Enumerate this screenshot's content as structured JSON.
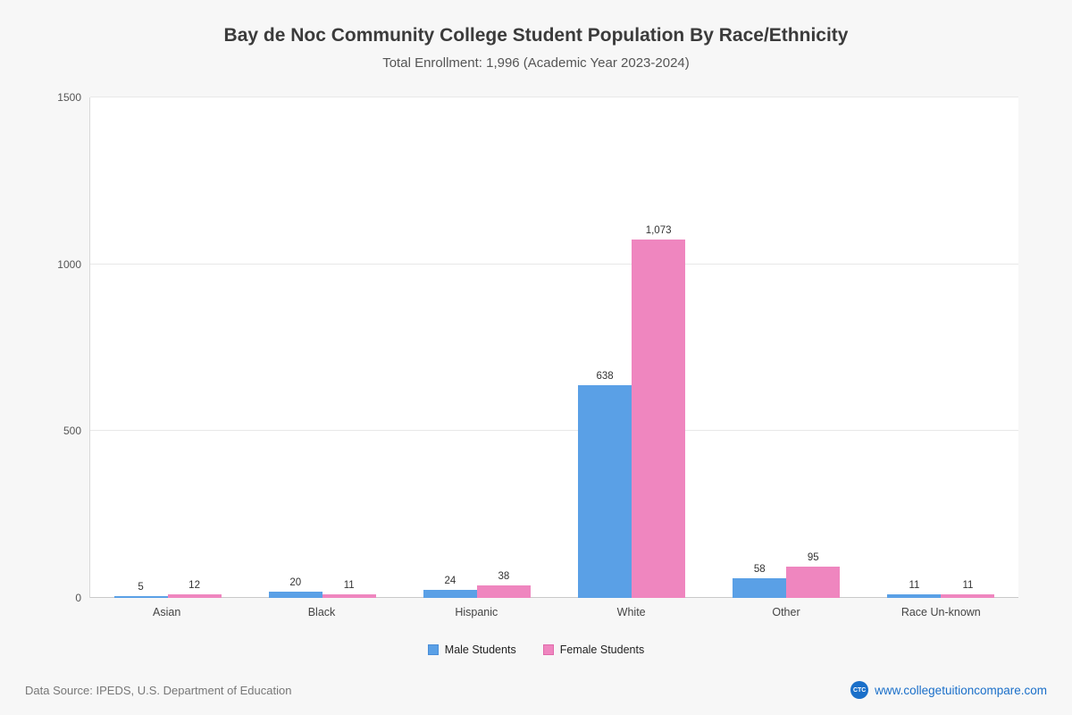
{
  "header": {
    "title": "Bay de Noc Community College Student Population By Race/Ethnicity",
    "subtitle": "Total Enrollment: 1,996 (Academic Year 2023-2024)"
  },
  "chart_data": {
    "type": "bar",
    "categories": [
      "Asian",
      "Black",
      "Hispanic",
      "White",
      "Other",
      "Race Un-known"
    ],
    "series": [
      {
        "name": "Male Students",
        "color": "#5AA0E6",
        "border": "#4a8ed8",
        "values": [
          5,
          20,
          24,
          638,
          58,
          11
        ]
      },
      {
        "name": "Female Students",
        "color": "#EF86BF",
        "border": "#e06aab",
        "values": [
          12,
          11,
          38,
          1073,
          95,
          11
        ]
      }
    ],
    "title": "Bay de Noc Community College Student Population By Race/Ethnicity",
    "xlabel": "",
    "ylabel": "",
    "ylim": [
      0,
      1500
    ],
    "yticks": [
      0,
      500,
      1000,
      1500
    ],
    "grid": true,
    "legend_position": "bottom"
  },
  "footer": {
    "source": "Data Source: IPEDS, U.S. Department of Education",
    "logo": "CTC",
    "website": "www.collegetuitioncompare.com"
  }
}
